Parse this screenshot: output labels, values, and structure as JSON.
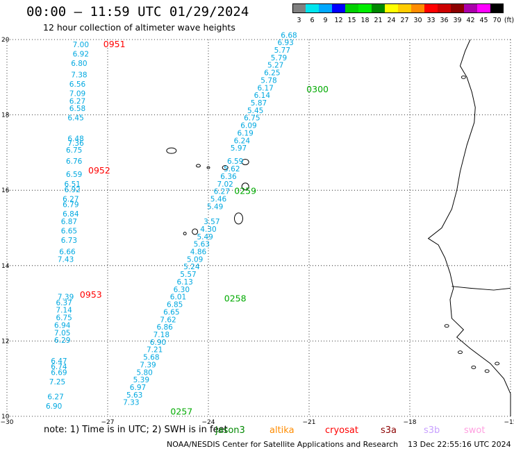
{
  "header": {
    "title": "00:00 – 11:59 UTC 01/29/2024",
    "subtitle": "12 hour collection of altimeter wave heights"
  },
  "color_scale": {
    "unit_label": "(ft)",
    "bins": [
      {
        "label": "3",
        "color": "#808080"
      },
      {
        "label": "6",
        "color": "#00e5ee"
      },
      {
        "label": "9",
        "color": "#00a8ff"
      },
      {
        "label": "12",
        "color": "#0000ff"
      },
      {
        "label": "15",
        "color": "#00d000"
      },
      {
        "label": "18",
        "color": "#00ee00"
      },
      {
        "label": "21",
        "color": "#008800"
      },
      {
        "label": "24",
        "color": "#ffff00"
      },
      {
        "label": "27",
        "color": "#ffcc00"
      },
      {
        "label": "30",
        "color": "#ff8c00"
      },
      {
        "label": "33",
        "color": "#ff0000"
      },
      {
        "label": "36",
        "color": "#cc0000"
      },
      {
        "label": "39",
        "color": "#8b0000"
      },
      {
        "label": "42",
        "color": "#aa00aa"
      },
      {
        "label": "45",
        "color": "#ff00ff"
      },
      {
        "label": "70",
        "color": "#000000"
      }
    ]
  },
  "map": {
    "lon_range": [
      -30,
      -15
    ],
    "lat_range": [
      10,
      20
    ],
    "lon_ticks": [
      "−30",
      "−27",
      "−24",
      "−21",
      "−18",
      "−15"
    ],
    "lat_ticks": [
      "20",
      "18",
      "16",
      "14",
      "12",
      "10"
    ]
  },
  "tracks": [
    {
      "time": "0951",
      "color": "#ff0000",
      "lon": -26.8,
      "lat": 19.8,
      "points": [
        [
          "7.00",
          -27.8,
          19.8
        ],
        [
          "6.92",
          -27.8,
          19.55
        ],
        [
          "6.80",
          -27.85,
          19.3
        ],
        [
          "7.38",
          -27.85,
          19.0
        ],
        [
          "6.56",
          -27.9,
          18.75
        ],
        [
          "7.09",
          -27.9,
          18.5
        ],
        [
          "6.27",
          -27.9,
          18.3
        ],
        [
          "6.58",
          -27.9,
          18.1
        ],
        [
          "6.45",
          -27.95,
          17.85
        ],
        [
          "6.48",
          -27.95,
          17.3
        ],
        [
          "7.36",
          -27.95,
          17.18
        ],
        [
          "6.75",
          -28.0,
          17.0
        ],
        [
          "6.76",
          -28.0,
          16.7
        ]
      ]
    },
    {
      "time": "0952",
      "color": "#ff0000",
      "lon": -27.25,
      "lat": 16.45,
      "points": [
        [
          "6.59",
          -28.0,
          16.35
        ],
        [
          "6.51",
          -28.05,
          16.1
        ],
        [
          "6.92",
          -28.05,
          15.95
        ],
        [
          "6.27",
          -28.1,
          15.7
        ],
        [
          "6.79",
          -28.1,
          15.55
        ],
        [
          "6.84",
          -28.1,
          15.3
        ],
        [
          "6.87",
          -28.15,
          15.1
        ],
        [
          "6.65",
          -28.15,
          14.85
        ],
        [
          "6.73",
          -28.15,
          14.6
        ],
        [
          "6.66",
          -28.2,
          14.3
        ],
        [
          "7.43",
          -28.25,
          14.1
        ]
      ]
    },
    {
      "time": "0953",
      "color": "#ff0000",
      "lon": -27.5,
      "lat": 13.15,
      "points": [
        [
          "7.39",
          -28.25,
          13.1
        ],
        [
          "6.37",
          -28.3,
          12.95
        ],
        [
          "7.14",
          -28.3,
          12.75
        ],
        [
          "6.75",
          -28.3,
          12.55
        ],
        [
          "6.94",
          -28.35,
          12.35
        ],
        [
          "7.05",
          -28.35,
          12.15
        ],
        [
          "6.29",
          -28.35,
          11.95
        ],
        [
          "6.47",
          -28.45,
          11.4
        ],
        [
          "6.74",
          -28.45,
          11.25
        ],
        [
          "6.69",
          -28.45,
          11.1
        ],
        [
          "7.25",
          -28.5,
          10.85
        ],
        [
          "6.27",
          -28.55,
          10.45
        ],
        [
          "6.90",
          -28.6,
          10.2
        ]
      ]
    },
    {
      "time": "0300",
      "color": "#00aa00",
      "lon": -20.75,
      "lat": 18.6,
      "points": [
        [
          "6.68",
          -21.6,
          20.05
        ],
        [
          "6.93",
          -21.7,
          19.85
        ],
        [
          "5.77",
          -21.8,
          19.65
        ],
        [
          "5.79",
          -21.9,
          19.45
        ],
        [
          "5.27",
          -22.0,
          19.25
        ],
        [
          "6.25",
          -22.1,
          19.05
        ],
        [
          "5.78",
          -22.2,
          18.85
        ],
        [
          "6.17",
          -22.3,
          18.65
        ],
        [
          "6.14",
          -22.4,
          18.45
        ],
        [
          "5.87",
          -22.5,
          18.25
        ],
        [
          "5.45",
          -22.6,
          18.05
        ],
        [
          "6.75",
          -22.7,
          17.85
        ],
        [
          "6.09",
          -22.8,
          17.65
        ],
        [
          "6.19",
          -22.9,
          17.45
        ],
        [
          "6.24",
          -23.0,
          17.25
        ],
        [
          "5.97",
          -23.1,
          17.05
        ]
      ]
    },
    {
      "time": "0259",
      "color": "#00aa00",
      "lon": -22.9,
      "lat": 15.9,
      "points": [
        [
          "6.59",
          -23.2,
          16.7
        ],
        [
          "5.62",
          -23.3,
          16.5
        ],
        [
          "6.36",
          -23.4,
          16.3
        ],
        [
          "7.02",
          -23.5,
          16.1
        ],
        [
          "6.27",
          -23.6,
          15.9
        ],
        [
          "5.46",
          -23.7,
          15.7
        ],
        [
          "5.49",
          -23.8,
          15.5
        ]
      ]
    },
    {
      "time": "0258",
      "color": "#00aa00",
      "lon": -23.2,
      "lat": 13.05,
      "points": [
        [
          "3.57",
          -23.9,
          15.1
        ],
        [
          "4.30",
          -24.0,
          14.9
        ],
        [
          "5.49",
          -24.1,
          14.7
        ],
        [
          "5.63",
          -24.2,
          14.5
        ],
        [
          "4.86",
          -24.3,
          14.3
        ],
        [
          "5.09",
          -24.4,
          14.1
        ],
        [
          "5.24",
          -24.5,
          13.9
        ],
        [
          "5.57",
          -24.6,
          13.7
        ],
        [
          "6.13",
          -24.7,
          13.5
        ],
        [
          "6.30",
          -24.8,
          13.3
        ],
        [
          "6.01",
          -24.9,
          13.1
        ],
        [
          "6.85",
          -25.0,
          12.9
        ],
        [
          "6.65",
          -25.1,
          12.7
        ],
        [
          "7.62",
          -25.2,
          12.5
        ],
        [
          "6.86",
          -25.3,
          12.3
        ],
        [
          "7.18",
          -25.4,
          12.1
        ],
        [
          "6.90",
          -25.5,
          11.9
        ],
        [
          "7.21",
          -25.6,
          11.7
        ],
        [
          "5.68",
          -25.7,
          11.5
        ],
        [
          "7.39",
          -25.8,
          11.3
        ],
        [
          "5.80",
          -25.9,
          11.1
        ],
        [
          "5.39",
          -26.0,
          10.9
        ],
        [
          "6.97",
          -26.1,
          10.7
        ],
        [
          "5.63",
          -26.2,
          10.5
        ],
        [
          "7.33",
          -26.3,
          10.3
        ]
      ]
    },
    {
      "time": "0257",
      "color": "#00aa00",
      "lon": -24.8,
      "lat": 10.05,
      "points": []
    }
  ],
  "footer": {
    "note": "note: 1) Time is in UTC; 2) SWH is in feet",
    "legend": [
      {
        "label": "jason3",
        "color": "#008800"
      },
      {
        "label": "altika",
        "color": "#ff8c00"
      },
      {
        "label": "cryosat",
        "color": "#ff0000"
      },
      {
        "label": "s3a",
        "color": "#8b0000"
      },
      {
        "label": "s3b",
        "color": "#c8a0ff"
      },
      {
        "label": "swot",
        "color": "#ffa0e0"
      }
    ],
    "credit": "NOAA/NESDIS Center for Satellite Applications and Research",
    "timestamp": "13 Dec 22:55:16 UTC 2024"
  }
}
